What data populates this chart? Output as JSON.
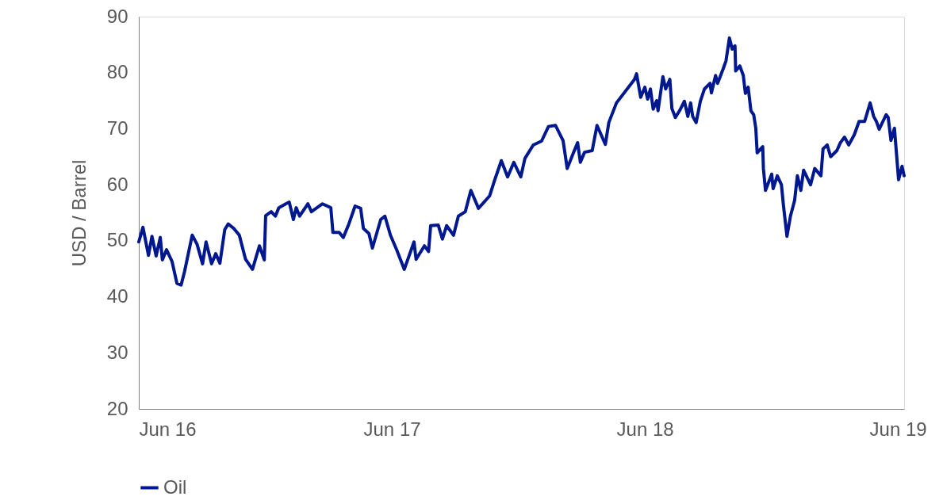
{
  "chart_data": {
    "type": "line",
    "ylabel": "USD / Barrel",
    "ylim": [
      20,
      90
    ],
    "yticks": [
      20,
      30,
      40,
      50,
      60,
      70,
      80,
      90
    ],
    "xlim": [
      "2016-06-01",
      "2019-06-10"
    ],
    "xticks": [
      {
        "value": "2016-06-01",
        "label": "Jun 16"
      },
      {
        "value": "2017-06-01",
        "label": "Jun 17"
      },
      {
        "value": "2018-06-01",
        "label": "Jun 18"
      },
      {
        "value": "2019-06-01",
        "label": "Jun 19"
      }
    ],
    "grid": false,
    "legend": "bottom",
    "marker": "none",
    "line_style": "solid",
    "x": [
      "2016-06-01",
      "2016-06-07",
      "2016-06-15",
      "2016-06-20",
      "2016-06-26",
      "2016-07-02",
      "2016-07-05",
      "2016-07-11",
      "2016-07-19",
      "2016-07-26",
      "2016-08-01",
      "2016-08-06",
      "2016-08-17",
      "2016-08-24",
      "2016-09-01",
      "2016-09-06",
      "2016-09-14",
      "2016-09-20",
      "2016-09-26",
      "2016-10-03",
      "2016-10-08",
      "2016-10-16",
      "2016-10-24",
      "2016-11-02",
      "2016-11-12",
      "2016-11-22",
      "2016-11-29",
      "2016-12-01",
      "2016-12-09",
      "2016-12-15",
      "2016-12-20",
      "2016-12-30",
      "2017-01-04",
      "2017-01-10",
      "2017-01-14",
      "2017-01-19",
      "2017-01-31",
      "2017-02-05",
      "2017-02-21",
      "2017-03-05",
      "2017-03-08",
      "2017-03-17",
      "2017-03-23",
      "2017-03-31",
      "2017-04-09",
      "2017-04-17",
      "2017-04-21",
      "2017-04-29",
      "2017-05-04",
      "2017-05-16",
      "2017-05-22",
      "2017-05-30",
      "2017-06-08",
      "2017-06-19",
      "2017-07-03",
      "2017-07-06",
      "2017-07-18",
      "2017-07-24",
      "2017-07-27",
      "2017-08-07",
      "2017-08-13",
      "2017-08-19",
      "2017-08-29",
      "2017-09-05",
      "2017-09-15",
      "2017-09-23",
      "2017-10-04",
      "2017-10-20",
      "2017-10-27",
      "2017-11-06",
      "2017-11-15",
      "2017-11-24",
      "2017-12-04",
      "2017-12-10",
      "2017-12-22",
      "2018-01-03",
      "2018-01-13",
      "2018-01-23",
      "2018-02-03",
      "2018-02-09",
      "2018-02-18",
      "2018-02-24",
      "2018-02-28",
      "2018-03-06",
      "2018-03-17",
      "2018-03-24",
      "2018-04-05",
      "2018-04-10",
      "2018-04-21",
      "2018-05-17",
      "2018-05-20",
      "2018-05-26",
      "2018-06-01",
      "2018-06-05",
      "2018-06-09",
      "2018-06-13",
      "2018-06-18",
      "2018-06-20",
      "2018-06-27",
      "2018-07-01",
      "2018-07-07",
      "2018-07-10",
      "2018-07-15",
      "2018-07-21",
      "2018-07-28",
      "2018-08-02",
      "2018-08-06",
      "2018-08-09",
      "2018-08-14",
      "2018-08-20",
      "2018-08-26",
      "2018-09-03",
      "2018-09-05",
      "2018-09-11",
      "2018-09-14",
      "2018-09-22",
      "2018-09-26",
      "2018-10-01",
      "2018-10-05",
      "2018-10-09",
      "2018-10-10",
      "2018-10-16",
      "2018-10-21",
      "2018-10-24",
      "2018-10-28",
      "2018-11-01",
      "2018-11-05",
      "2018-11-08",
      "2018-11-10",
      "2018-11-18",
      "2018-11-19",
      "2018-11-22",
      "2018-12-01",
      "2018-12-03",
      "2018-12-09",
      "2018-12-15",
      "2018-12-18",
      "2018-12-23",
      "2018-12-28",
      "2019-01-03",
      "2019-01-07",
      "2019-01-12",
      "2019-01-16",
      "2019-01-26",
      "2019-02-01",
      "2019-02-10",
      "2019-02-13",
      "2019-02-19",
      "2019-02-24",
      "2019-03-05",
      "2019-03-10",
      "2019-03-16",
      "2019-03-22",
      "2019-03-30",
      "2019-04-06",
      "2019-04-14",
      "2019-04-22",
      "2019-04-27",
      "2019-05-01",
      "2019-05-05",
      "2019-05-15",
      "2019-05-18",
      "2019-05-22",
      "2019-05-27",
      "2019-06-02",
      "2019-06-07",
      "2019-06-10"
    ],
    "series": [
      {
        "name": "Oil",
        "color": "#00188f",
        "values": [
          49.8,
          52.4,
          47.4,
          50.8,
          47.3,
          50.6,
          46.6,
          48.4,
          46.3,
          42.4,
          42.1,
          44.5,
          51.0,
          49.4,
          45.9,
          49.8,
          45.9,
          47.7,
          46.0,
          52.0,
          53.0,
          52.2,
          51.0,
          46.7,
          44.9,
          49.1,
          46.6,
          54.5,
          55.2,
          54.4,
          55.9,
          56.6,
          56.9,
          53.8,
          55.9,
          54.4,
          56.6,
          55.2,
          56.6,
          55.9,
          51.5,
          51.5,
          50.6,
          53.0,
          56.2,
          55.8,
          52.2,
          51.3,
          48.7,
          53.8,
          54.4,
          51.0,
          48.4,
          44.9,
          49.8,
          46.7,
          49.1,
          48.1,
          52.7,
          52.8,
          50.3,
          52.7,
          51.0,
          54.4,
          55.2,
          59.0,
          55.8,
          58.0,
          60.7,
          64.3,
          61.4,
          64.0,
          61.4,
          64.7,
          67.1,
          67.8,
          70.4,
          70.6,
          67.9,
          62.9,
          65.7,
          67.5,
          64.0,
          65.8,
          66.1,
          70.6,
          67.2,
          71.1,
          74.6,
          78.8,
          79.8,
          75.6,
          77.4,
          75.3,
          77.1,
          73.5,
          75.0,
          73.2,
          79.3,
          77.1,
          78.8,
          73.6,
          72.0,
          73.2,
          74.9,
          72.2,
          74.6,
          72.2,
          71.1,
          74.9,
          77.1,
          78.1,
          76.4,
          79.5,
          78.1,
          80.7,
          82.1,
          86.2,
          84.2,
          84.8,
          80.3,
          81.2,
          79.5,
          76.3,
          77.4,
          73.2,
          72.5,
          70.1,
          65.7,
          66.8,
          62.9,
          59.0,
          61.9,
          59.3,
          61.6,
          60.0,
          56.2,
          50.8,
          54.4,
          57.2,
          61.6,
          59.0,
          62.6,
          60.0,
          62.9,
          61.6,
          66.4,
          67.1,
          65.0,
          66.1,
          67.5,
          68.5,
          67.1,
          68.9,
          71.3,
          71.3,
          74.6,
          72.2,
          71.3,
          69.9,
          72.5,
          72.0,
          67.9,
          70.1,
          60.9,
          63.3,
          61.6
        ]
      }
    ]
  }
}
